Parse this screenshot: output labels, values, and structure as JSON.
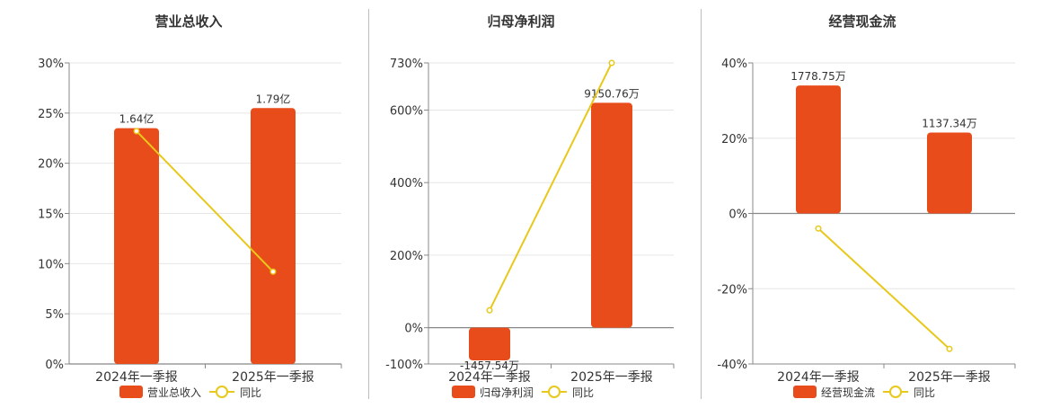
{
  "chart_data": [
    {
      "type": "bar",
      "title": "营业总收入",
      "categories": [
        "2024年一季报",
        "2025年一季报"
      ],
      "series": [
        {
          "name": "营业总收入",
          "values": [
            1.64,
            1.79
          ],
          "value_labels": [
            "1.64亿",
            "1.79亿"
          ],
          "color": "#e84c1a"
        },
        {
          "name": "同比",
          "values": [
            23.2,
            9.2
          ],
          "color": "#e8c81a"
        }
      ],
      "ylim": [
        0,
        30
      ],
      "ytick_labels": [
        "0%",
        "5%",
        "10%",
        "15%",
        "20%",
        "25%",
        "30%"
      ],
      "grid": true,
      "legend": "bottom"
    },
    {
      "type": "bar",
      "title": "归母净利润",
      "categories": [
        "2024年一季报",
        "2025年一季报"
      ],
      "series": [
        {
          "name": "归母净利润",
          "values": [
            -1457.54,
            9150.76
          ],
          "value_labels": [
            "-1457.54万",
            "9150.76万"
          ],
          "color": "#e84c1a"
        },
        {
          "name": "同比",
          "values": [
            48,
            730
          ],
          "color": "#e8c81a"
        }
      ],
      "ylim": [
        -100,
        730
      ],
      "ytick_labels": [
        "-100%",
        "0%",
        "200%",
        "400%",
        "600%",
        "730%"
      ],
      "grid": true,
      "legend": "bottom"
    },
    {
      "type": "bar",
      "title": "经营现金流",
      "categories": [
        "2024年一季报",
        "2025年一季报"
      ],
      "series": [
        {
          "name": "经营现金流",
          "values": [
            1778.75,
            1137.34
          ],
          "value_labels": [
            "1778.75万",
            "1137.34万"
          ],
          "color": "#e84c1a"
        },
        {
          "name": "同比",
          "values": [
            -4,
            -36
          ],
          "color": "#e8c81a"
        }
      ],
      "ylim": [
        -40,
        40
      ],
      "ytick_labels": [
        "-40%",
        "-20%",
        "0%",
        "20%",
        "40%"
      ],
      "grid": true,
      "legend": "bottom"
    }
  ]
}
